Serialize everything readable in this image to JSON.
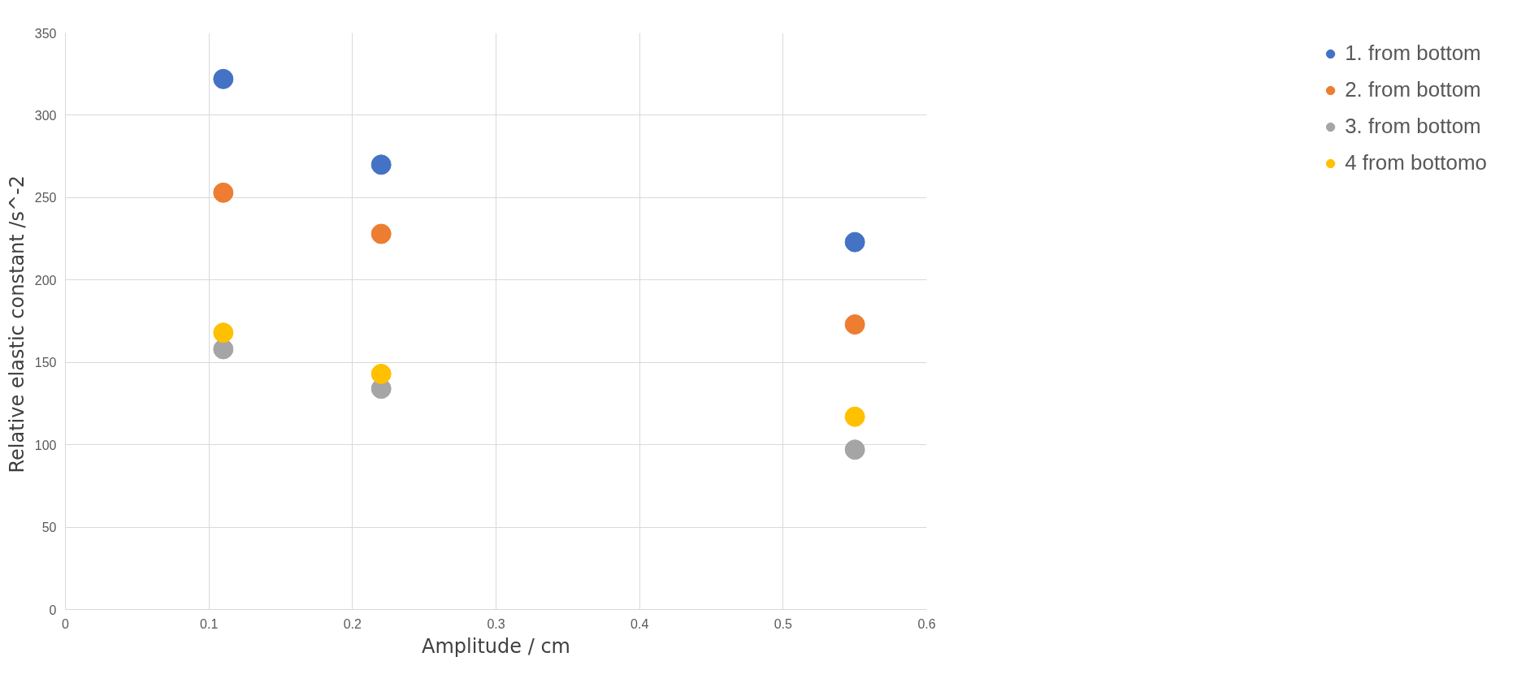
{
  "chart_data": {
    "type": "scatter",
    "xlabel": "Amplitude / cm",
    "ylabel": "Relative  elastic constant /s^-2",
    "x": [
      0.11,
      0.22,
      0.55
    ],
    "series": [
      {
        "name": "1. from bottom",
        "color": "#4472c4",
        "values": [
          322,
          270,
          223
        ]
      },
      {
        "name": "2. from bottom",
        "color": "#ed7d31",
        "values": [
          253,
          228,
          173
        ]
      },
      {
        "name": "3. from bottom",
        "color": "#a5a5a5",
        "values": [
          158,
          134,
          97
        ]
      },
      {
        "name": "4 from bottomo",
        "color": "#ffc000",
        "values": [
          168,
          143,
          117
        ]
      }
    ],
    "xlim": [
      0,
      0.6
    ],
    "xticks": [
      0,
      0.1,
      0.2,
      0.3,
      0.4,
      0.5,
      0.6
    ],
    "ylim": [
      0,
      350
    ],
    "yticks": [
      0,
      50,
      100,
      150,
      200,
      250,
      300,
      350
    ],
    "grid": true,
    "legend": "right",
    "marker": "circle"
  }
}
